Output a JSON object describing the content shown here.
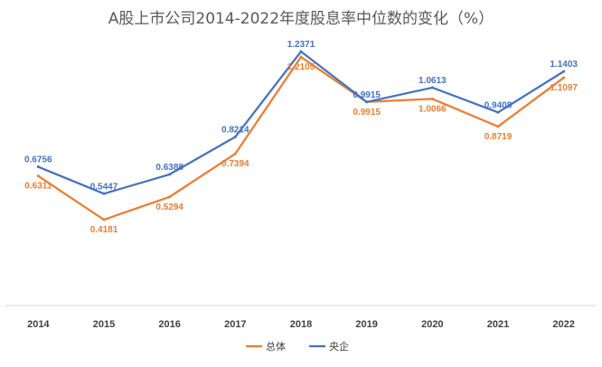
{
  "chart_data": {
    "type": "line",
    "title": "A股上市公司2014-2022年度股息率中位数的变化（%）",
    "categories": [
      "2014",
      "2015",
      "2016",
      "2017",
      "2018",
      "2019",
      "2020",
      "2021",
      "2022"
    ],
    "series": [
      {
        "name": "总体",
        "color": "#ED7D31",
        "values": [
          0.6311,
          0.4181,
          0.5294,
          0.7394,
          1.2105,
          0.9915,
          1.0066,
          0.8719,
          1.1097
        ],
        "labels": [
          "0.6311",
          "0.4181",
          "0.5294",
          "0.7394",
          "1.2105",
          "0.9915",
          "1.0066",
          "0.8719",
          "1.1097"
        ]
      },
      {
        "name": "央企",
        "color": "#4472C4",
        "values": [
          0.6756,
          0.5447,
          0.6388,
          0.8214,
          1.2371,
          0.9915,
          1.0613,
          0.9408,
          1.1403
        ],
        "labels": [
          "0.6756",
          "0.5447",
          "0.6388",
          "0.8214",
          "1.2371",
          "0.9915",
          "1.0613",
          "0.9408",
          "1.1403"
        ]
      }
    ],
    "ylim": [
      0,
      1.4
    ],
    "grid": false,
    "legend": "bottom"
  }
}
